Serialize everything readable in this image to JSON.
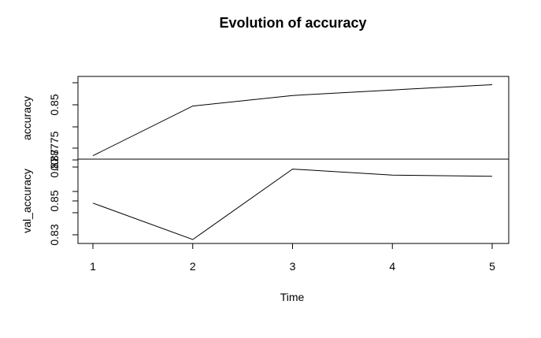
{
  "chart_data": {
    "type": "line",
    "title": "Evolution of accuracy",
    "xlabel": "Time",
    "x": [
      1,
      2,
      3,
      4,
      5
    ],
    "xticks": [
      "1",
      "2",
      "3",
      "4",
      "5"
    ],
    "panels": [
      {
        "ylabel": "accuracy",
        "ylim": [
          0.87,
          0.92
        ],
        "yticks": [
          0.8775,
          0.85,
          0.87
        ],
        "ytick_labels": [
          "0.8775",
          "0.85",
          "0.87"
        ],
        "series": [
          {
            "values": [
              0.8725,
              0.9085,
              0.9162,
              0.9202,
              0.924
            ]
          }
        ]
      },
      {
        "ylabel": "val_accuracy",
        "ylim": [
          0.83,
          0.87
        ],
        "yticks": [
          0.83,
          0.85,
          0.87
        ],
        "ytick_labels": [
          "0.83",
          "0.85",
          "0.87"
        ],
        "series": [
          {
            "values": [
              0.8487,
              0.8272,
              0.8688,
              0.8652,
              0.8645
            ]
          }
        ]
      }
    ]
  }
}
